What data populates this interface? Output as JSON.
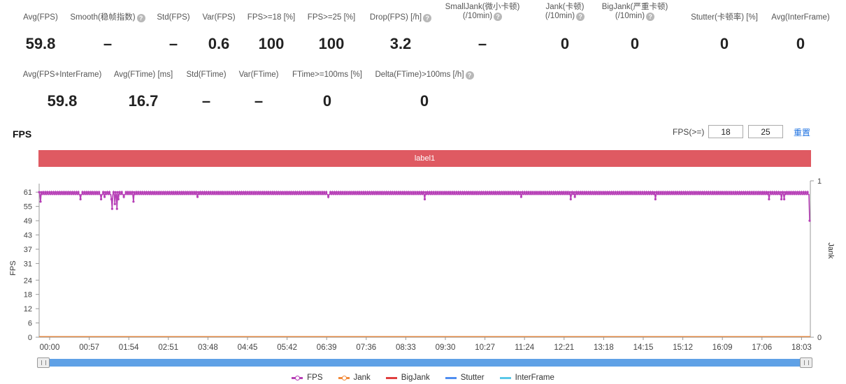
{
  "metrics_row1": [
    {
      "label": "Avg(FPS)",
      "value": "59.8",
      "help": false
    },
    {
      "label": "Smooth(稳帧指数)",
      "value": "–",
      "help": true
    },
    {
      "label": "Std(FPS)",
      "value": "–",
      "help": false
    },
    {
      "label": "Var(FPS)",
      "value": "0.6",
      "help": false
    },
    {
      "label": "FPS>=18 [%]",
      "value": "100",
      "help": false
    },
    {
      "label": "FPS>=25 [%]",
      "value": "100",
      "help": false
    },
    {
      "label": "Drop(FPS) [/h]",
      "value": "3.2",
      "help": true
    },
    {
      "label": "SmallJank(微小卡顿)",
      "label2": "(/10min)",
      "value": "–",
      "help": true
    },
    {
      "label": "Jank(卡顿)",
      "label2": "(/10min)",
      "value": "0",
      "help": true
    },
    {
      "label": "BigJank(严重卡顿)",
      "label2": "(/10min)",
      "value": "0",
      "help": true
    },
    {
      "label": "Stutter(卡顿率) [%]",
      "value": "0",
      "help": false
    },
    {
      "label": "Avg(InterFrame)",
      "value": "0",
      "help": false
    }
  ],
  "metrics_row2": [
    {
      "label": "Avg(FPS+InterFrame)",
      "value": "59.8",
      "help": false
    },
    {
      "label": "Avg(FTime) [ms]",
      "value": "16.7",
      "help": false
    },
    {
      "label": "Std(FTime)",
      "value": "–",
      "help": false
    },
    {
      "label": "Var(FTime)",
      "value": "–",
      "help": false
    },
    {
      "label": "FTime>=100ms [%]",
      "value": "0",
      "help": false
    },
    {
      "label": "Delta(FTime)>100ms [/h]",
      "value": "0",
      "help": true
    }
  ],
  "section_title": "FPS",
  "threshold": {
    "label": "FPS(>=)",
    "value1": "18",
    "value2": "25",
    "reset_label": "重置"
  },
  "label_bar": "label1",
  "chart_data": {
    "type": "line",
    "ylabel": "FPS",
    "y2label": "Jank",
    "ylim": [
      0,
      64
    ],
    "y_ticks": [
      0,
      6,
      12,
      18,
      24,
      31,
      37,
      43,
      49,
      55,
      61
    ],
    "y2_ticks": [
      0,
      1
    ],
    "x_ticks": [
      "00:00",
      "00:57",
      "01:54",
      "02:51",
      "03:48",
      "04:45",
      "05:42",
      "06:39",
      "07:36",
      "08:33",
      "09:30",
      "10:27",
      "11:24",
      "12:21",
      "13:18",
      "14:15",
      "15:12",
      "16:09",
      "17:06",
      "18:03"
    ],
    "duration_seconds": 1120,
    "series": [
      {
        "name": "FPS",
        "color": "#b63fb6",
        "baseline": 60,
        "dips": [
          {
            "t": 2,
            "v": 57
          },
          {
            "t": 60,
            "v": 58
          },
          {
            "t": 90,
            "v": 58
          },
          {
            "t": 95,
            "v": 59
          },
          {
            "t": 105,
            "v": 58
          },
          {
            "t": 106,
            "v": 54
          },
          {
            "t": 110,
            "v": 56
          },
          {
            "t": 113,
            "v": 54
          },
          {
            "t": 115,
            "v": 58
          },
          {
            "t": 123,
            "v": 59
          },
          {
            "t": 137,
            "v": 57
          },
          {
            "t": 230,
            "v": 59
          },
          {
            "t": 420,
            "v": 59
          },
          {
            "t": 560,
            "v": 58
          },
          {
            "t": 700,
            "v": 59
          },
          {
            "t": 772,
            "v": 58
          },
          {
            "t": 778,
            "v": 59
          },
          {
            "t": 895,
            "v": 58
          },
          {
            "t": 1060,
            "v": 58
          },
          {
            "t": 1078,
            "v": 58
          },
          {
            "t": 1082,
            "v": 58
          },
          {
            "t": 1119,
            "v": 49
          }
        ]
      },
      {
        "name": "Jank",
        "color": "#f28a3a",
        "values": [
          0
        ]
      },
      {
        "name": "BigJank",
        "color": "#e03f3f",
        "values": [
          0
        ]
      },
      {
        "name": "Stutter",
        "color": "#4f8ef0",
        "values": [
          0
        ]
      },
      {
        "name": "InterFrame",
        "color": "#5ac8e8",
        "values": [
          0
        ]
      }
    ]
  }
}
